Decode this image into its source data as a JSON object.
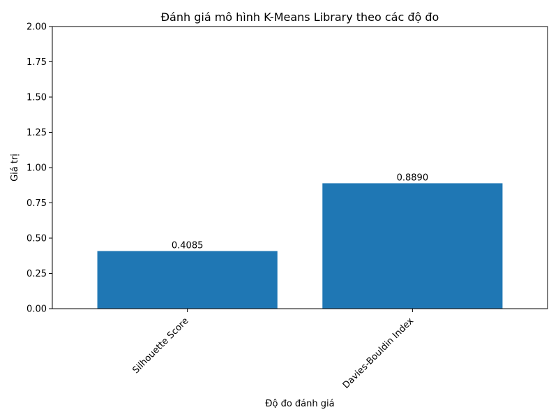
{
  "chart_data": {
    "type": "bar",
    "title": "Đánh giá mô hình K-Means Library theo các độ đo",
    "xlabel": "Độ đo đánh giá",
    "ylabel": "Giá trị",
    "categories": [
      "Silhouette Score",
      "Davies-Bouldin Index"
    ],
    "values": [
      0.4085,
      0.889
    ],
    "value_labels": [
      "0.4085",
      "0.8890"
    ],
    "ylim": [
      0,
      2.0
    ],
    "yticks": [
      0.0,
      0.25,
      0.5,
      0.75,
      1.0,
      1.25,
      1.5,
      1.75,
      2.0
    ],
    "ytick_labels": [
      "0.00",
      "0.25",
      "0.50",
      "0.75",
      "1.00",
      "1.25",
      "1.50",
      "1.75",
      "2.00"
    ],
    "bar_color": "#1f77b4",
    "grid": false,
    "legend": false
  }
}
